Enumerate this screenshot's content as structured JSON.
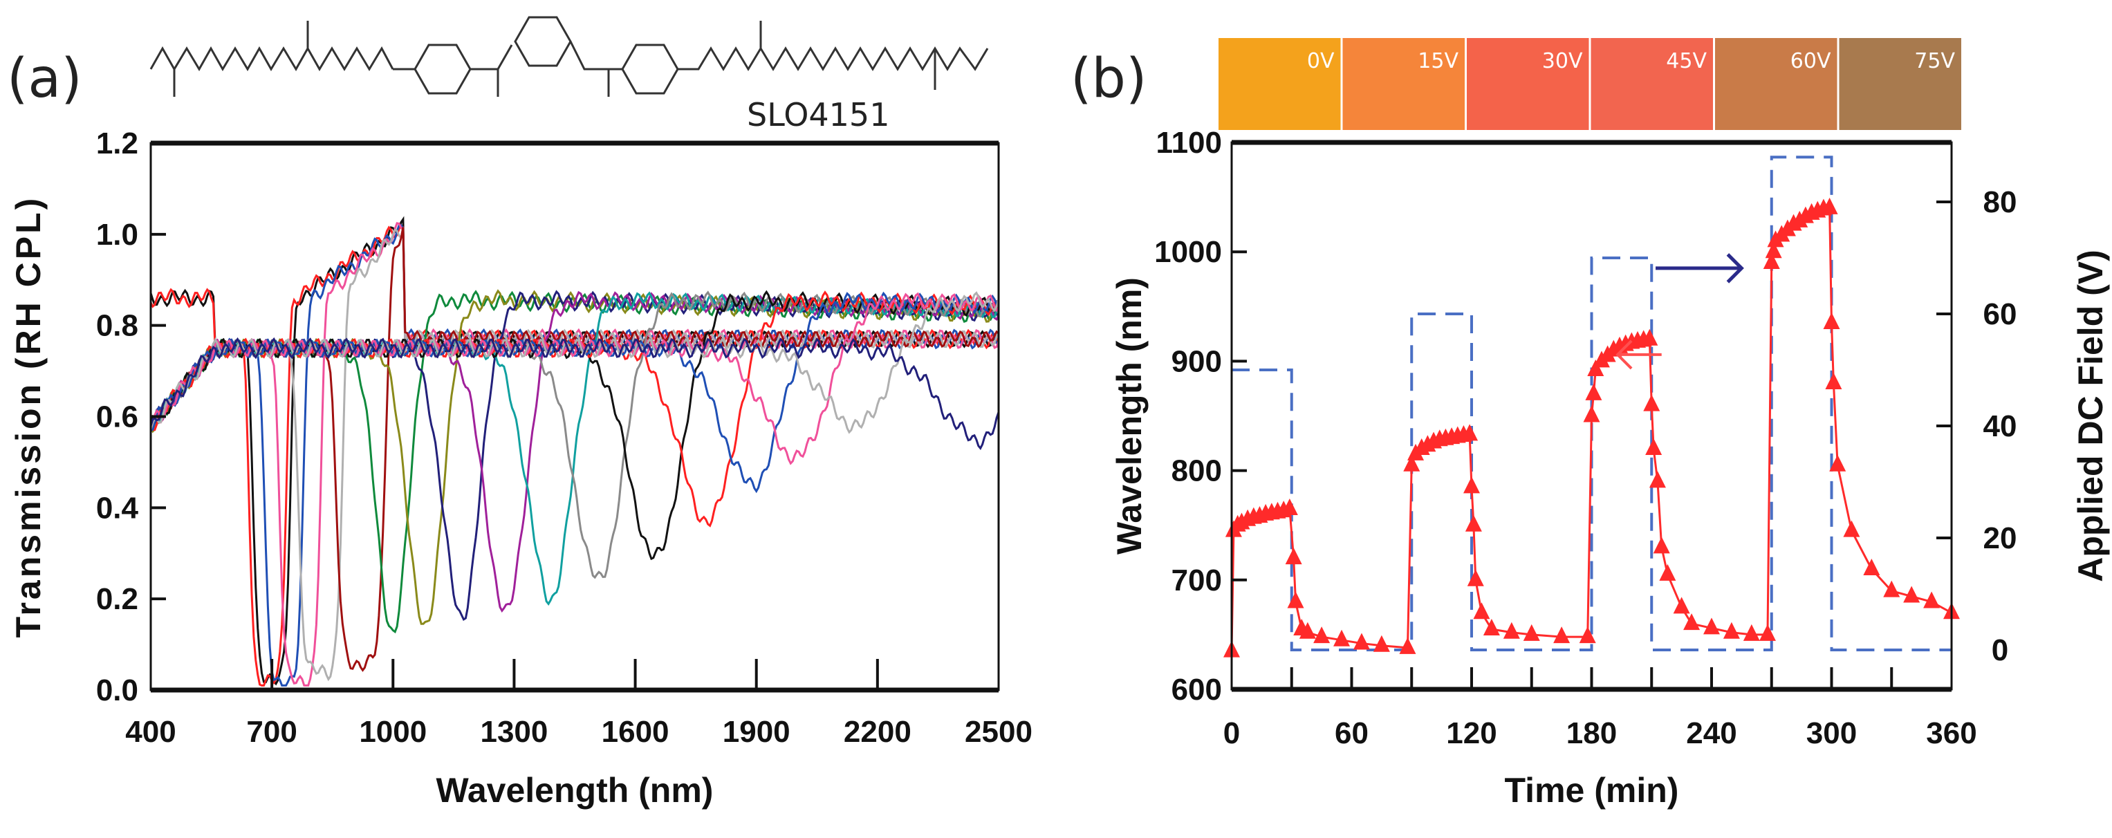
{
  "panel_a": {
    "label": "(a)",
    "compound": "SLO4151"
  },
  "panel_b": {
    "label": "(b)",
    "photos": [
      {
        "label": "0V",
        "color": "#f4a21c"
      },
      {
        "label": "15V",
        "color": "#f5853a"
      },
      {
        "label": "30V",
        "color": "#f4634a"
      },
      {
        "label": "45V",
        "color": "#f2654f"
      },
      {
        "label": "60V",
        "color": "#c97b48"
      },
      {
        "label": "75V",
        "color": "#a87a4e"
      }
    ]
  },
  "chart_data": [
    {
      "type": "line",
      "title": "",
      "xlabel": "Wavelength (nm)",
      "ylabel": "Transmission (RH CPL)",
      "xlim": [
        400,
        2500
      ],
      "ylim": [
        0,
        1.2
      ],
      "xticks": [
        "400",
        "700",
        "1000",
        "1300",
        "1600",
        "1900",
        "2200",
        "2500"
      ],
      "yticks": [
        "0.0",
        "0.2",
        "0.4",
        "0.6",
        "0.8",
        "1.0",
        "1.2"
      ],
      "grid": false,
      "series": [
        {
          "color": "#111111",
          "dip_nm": 700,
          "min_T": 0.03
        },
        {
          "color": "#ff2020",
          "dip_nm": 690,
          "min_T": 0.02
        },
        {
          "color": "#1f4fb5",
          "dip_nm": 730,
          "min_T": 0.02
        },
        {
          "color": "#f0509a",
          "dip_nm": 770,
          "min_T": 0.02
        },
        {
          "color": "#b0b0b0",
          "dip_nm": 820,
          "min_T": 0.04
        },
        {
          "color": "#a01010",
          "dip_nm": 920,
          "min_T": 0.06
        },
        {
          "color": "#0f8a3c",
          "dip_nm": 1000,
          "min_T": 0.12
        },
        {
          "color": "#8a8a1a",
          "dip_nm": 1080,
          "min_T": 0.13
        },
        {
          "color": "#22207a",
          "dip_nm": 1170,
          "min_T": 0.16
        },
        {
          "color": "#a0209a",
          "dip_nm": 1280,
          "min_T": 0.17
        },
        {
          "color": "#10a0a0",
          "dip_nm": 1390,
          "min_T": 0.2
        },
        {
          "color": "#8a8a8a",
          "dip_nm": 1510,
          "min_T": 0.24
        },
        {
          "color": "#111111",
          "dip_nm": 1650,
          "min_T": 0.29
        },
        {
          "color": "#ff2020",
          "dip_nm": 1780,
          "min_T": 0.37
        },
        {
          "color": "#1f4fb5",
          "dip_nm": 1890,
          "min_T": 0.45
        },
        {
          "color": "#f0509a",
          "dip_nm": 2000,
          "min_T": 0.51
        },
        {
          "color": "#b0b0b0",
          "dip_nm": 2150,
          "min_T": 0.58
        },
        {
          "color": "#22207a",
          "dip_nm": 2450,
          "min_T": 0.55
        }
      ]
    },
    {
      "type": "line",
      "title": "",
      "xlabel": "Time (min)",
      "ylabel": "Wavelength (nm)",
      "y2label": "Applied DC Field (V)",
      "xlim": [
        0,
        360
      ],
      "ylim": [
        600,
        1100
      ],
      "y2lim": [
        0,
        90
      ],
      "xticks": [
        "0",
        "60",
        "120",
        "180",
        "240",
        "300",
        "360"
      ],
      "yticks": [
        "600",
        "700",
        "800",
        "900",
        "1000",
        "1100"
      ],
      "y2ticks": [
        "0",
        "20",
        "40",
        "60",
        "80"
      ],
      "series": [
        {
          "name": "Wavelength",
          "axis": "left",
          "color": "#ff2a2a",
          "marker": "triangle",
          "x": [
            0,
            1,
            3,
            5,
            8,
            11,
            14,
            17,
            20,
            23,
            26,
            29,
            31,
            32,
            35,
            38,
            45,
            55,
            65,
            75,
            88,
            90,
            92,
            95,
            98,
            101,
            104,
            107,
            110,
            113,
            116,
            119,
            120,
            121,
            122,
            125,
            130,
            140,
            150,
            165,
            178,
            180,
            181,
            182,
            185,
            188,
            191,
            194,
            197,
            200,
            203,
            206,
            209,
            210,
            211,
            213,
            215,
            218,
            225,
            230,
            240,
            250,
            260,
            268,
            270,
            271,
            272,
            275,
            278,
            281,
            284,
            287,
            290,
            293,
            296,
            299,
            300,
            301,
            303,
            310,
            320,
            330,
            340,
            350,
            360
          ],
          "y": [
            635,
            745,
            750,
            752,
            755,
            757,
            758,
            760,
            761,
            762,
            763,
            765,
            720,
            680,
            655,
            652,
            648,
            645,
            642,
            640,
            638,
            805,
            815,
            820,
            823,
            826,
            828,
            829,
            830,
            831,
            832,
            833,
            785,
            750,
            700,
            670,
            655,
            652,
            650,
            648,
            648,
            850,
            870,
            892,
            900,
            905,
            910,
            913,
            915,
            917,
            918,
            919,
            920,
            860,
            820,
            790,
            730,
            705,
            675,
            660,
            656,
            652,
            650,
            650,
            990,
            1000,
            1010,
            1015,
            1020,
            1025,
            1028,
            1032,
            1035,
            1037,
            1039,
            1040,
            935,
            880,
            805,
            745,
            710,
            690,
            685,
            680,
            670
          ]
        },
        {
          "name": "Applied DC Field",
          "axis": "right",
          "color": "#4a6fc4",
          "style": "dashed-step",
          "x": [
            0,
            30,
            90,
            120,
            180,
            210,
            270,
            300,
            360
          ],
          "y": [
            50,
            0,
            60,
            0,
            70,
            0,
            88,
            0,
            0
          ]
        }
      ]
    }
  ]
}
